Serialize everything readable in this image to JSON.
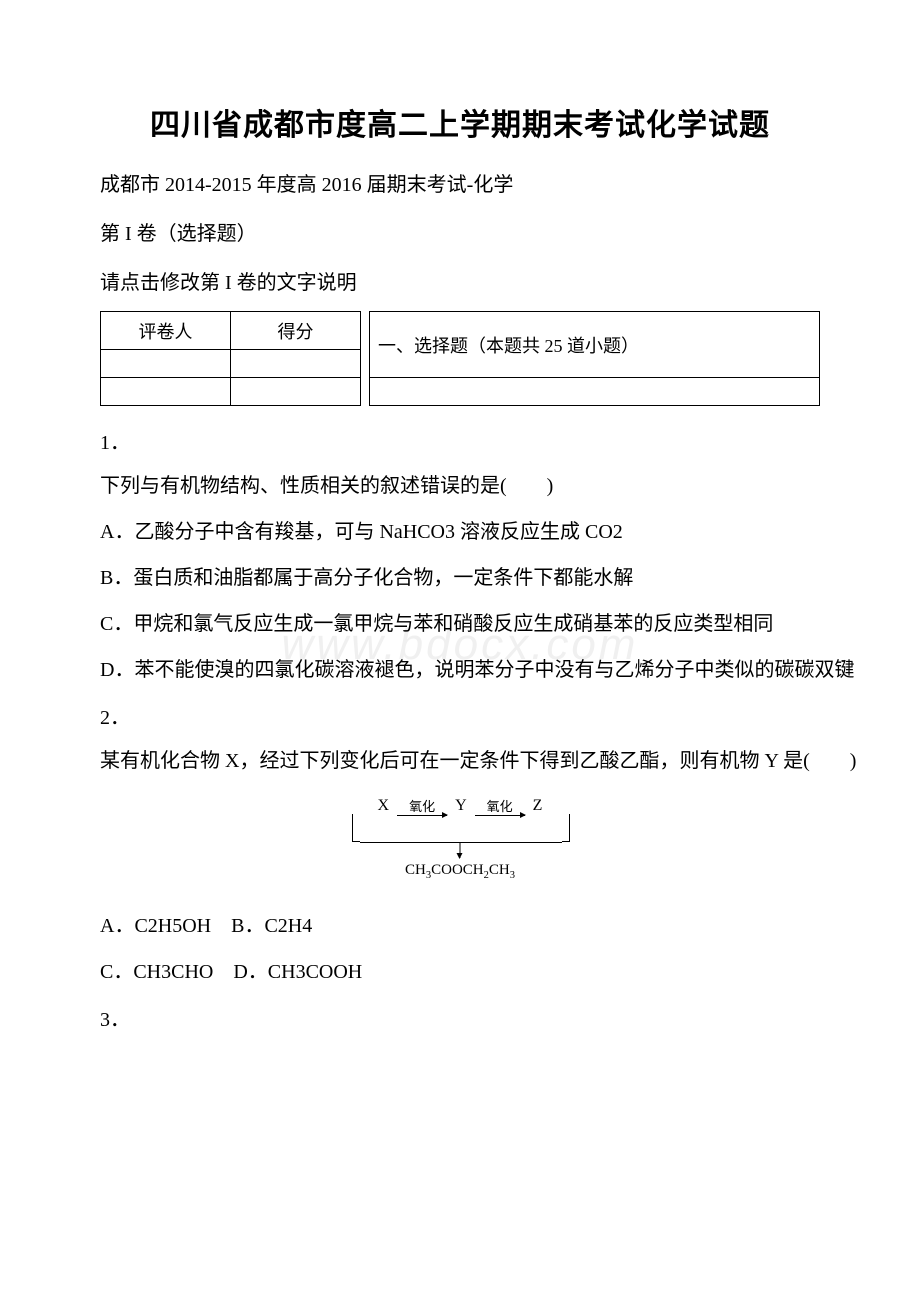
{
  "title": "四川省成都市度高二上学期期末考试化学试题",
  "subtitle": "成都市 2014-2015 年度高 2016 届期末考试-化学",
  "volume_label": "第 I 卷（选择题）",
  "instruction": "请点击修改第 I 卷的文字说明",
  "score_table": {
    "grader_header": "评卷人",
    "score_header": "得分"
  },
  "section_label": "一、选择题（本题共 25 道小题）",
  "questions": {
    "q1": {
      "num": "1．",
      "text": "下列与有机物结构、性质相关的叙述错误的是(　　)",
      "options": {
        "a": "A．乙酸分子中含有羧基，可与 NaHCO3 溶液反应生成 CO2",
        "b": "B．蛋白质和油脂都属于高分子化合物，一定条件下都能水解",
        "c": "C．甲烷和氯气反应生成一氯甲烷与苯和硝酸反应生成硝基苯的反应类型相同",
        "d": "D．苯不能使溴的四氯化碳溶液褪色，说明苯分子中没有与乙烯分子中类似的碳碳双键"
      }
    },
    "q2": {
      "num": "2．",
      "text": "某有机化合物 X，经过下列变化后可在一定条件下得到乙酸乙酯，则有机物 Y 是(　　)",
      "diagram": {
        "x": "X",
        "y": "Y",
        "z": "Z",
        "step1": "氧化",
        "step2": "氧化",
        "product": "CH₃COOCH₂CH₃"
      },
      "options": {
        "ab": "A．C2H5OH　B．C2H4",
        "cd": "C．CH3CHO　D．CH3COOH"
      }
    },
    "q3": {
      "num": "3．"
    }
  },
  "watermark": "www.bdocx.com"
}
